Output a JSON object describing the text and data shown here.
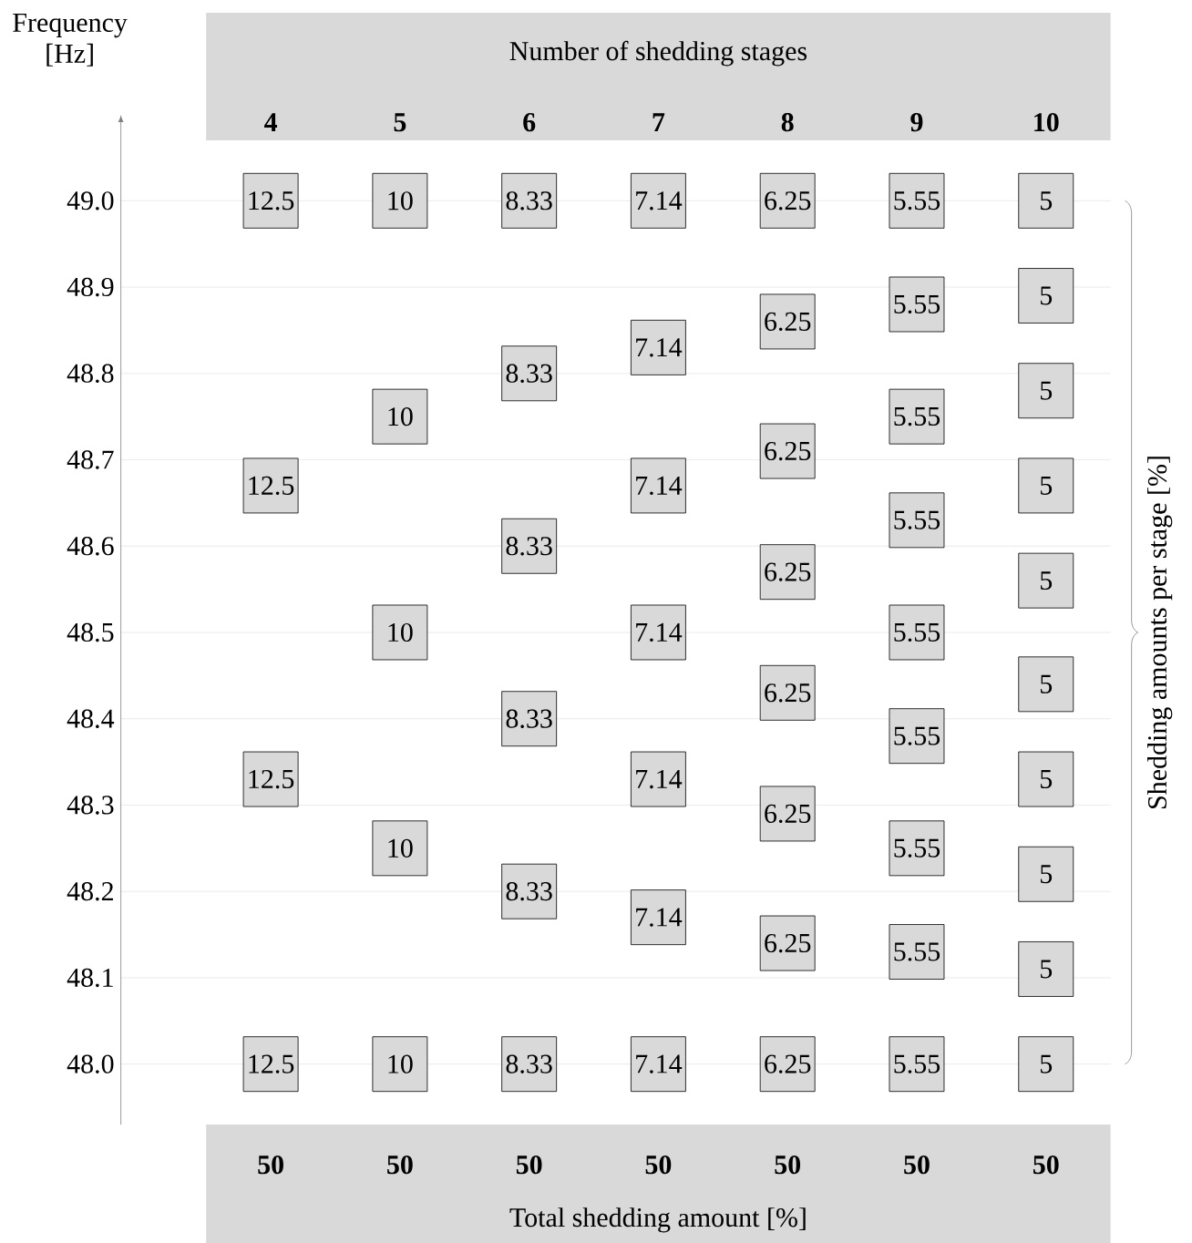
{
  "chart_data": {
    "type": "scatter",
    "xlabel": "Number of shedding stages",
    "ylabel": "Frequency [Hz]",
    "y2label": "Shedding amounts per stage [%]",
    "categories": [
      "4",
      "5",
      "6",
      "7",
      "8",
      "9",
      "10"
    ],
    "ylim": [
      47.93,
      49.07
    ],
    "yticks": [
      {
        "value": 48.0,
        "label": "48.0"
      },
      {
        "value": 48.1,
        "label": "48.1"
      },
      {
        "value": 48.2,
        "label": "48.2"
      },
      {
        "value": 48.3,
        "label": "48.3"
      },
      {
        "value": 48.4,
        "label": "48.4"
      },
      {
        "value": 48.5,
        "label": "48.5"
      },
      {
        "value": 48.6,
        "label": "48.6"
      },
      {
        "value": 48.7,
        "label": "48.7"
      },
      {
        "value": 48.8,
        "label": "48.8"
      },
      {
        "value": 48.9,
        "label": "48.9"
      },
      {
        "value": 49.0,
        "label": "49.0"
      }
    ],
    "grid": true,
    "marker": "square",
    "totals": [
      "50",
      "50",
      "50",
      "50",
      "50",
      "50",
      "50"
    ],
    "annotations": [
      "Total shedding amount [%]",
      {
        "text": "12.5",
        "x": "4",
        "y": 49.0
      },
      {
        "text": "12.5",
        "x": "4",
        "y": 48.67
      },
      {
        "text": "12.5",
        "x": "4",
        "y": 48.33
      },
      {
        "text": "12.5",
        "x": "4",
        "y": 48.0
      },
      {
        "text": "10",
        "x": "5",
        "y": 49.0
      },
      {
        "text": "10",
        "x": "5",
        "y": 48.75
      },
      {
        "text": "10",
        "x": "5",
        "y": 48.5
      },
      {
        "text": "10",
        "x": "5",
        "y": 48.25
      },
      {
        "text": "10",
        "x": "5",
        "y": 48.0
      },
      {
        "text": "8.33",
        "x": "6",
        "y": 49.0
      },
      {
        "text": "8.33",
        "x": "6",
        "y": 48.8
      },
      {
        "text": "8.33",
        "x": "6",
        "y": 48.6
      },
      {
        "text": "8.33",
        "x": "6",
        "y": 48.4
      },
      {
        "text": "8.33",
        "x": "6",
        "y": 48.2
      },
      {
        "text": "8.33",
        "x": "6",
        "y": 48.0
      },
      {
        "text": "7.14",
        "x": "7",
        "y": 49.0
      },
      {
        "text": "7.14",
        "x": "7",
        "y": 48.83
      },
      {
        "text": "7.14",
        "x": "7",
        "y": 48.67
      },
      {
        "text": "7.14",
        "x": "7",
        "y": 48.5
      },
      {
        "text": "7.14",
        "x": "7",
        "y": 48.33
      },
      {
        "text": "7.14",
        "x": "7",
        "y": 48.17
      },
      {
        "text": "7.14",
        "x": "7",
        "y": 48.0
      },
      {
        "text": "6.25",
        "x": "8",
        "y": 49.0
      },
      {
        "text": "6.25",
        "x": "8",
        "y": 48.86
      },
      {
        "text": "6.25",
        "x": "8",
        "y": 48.71
      },
      {
        "text": "6.25",
        "x": "8",
        "y": 48.57
      },
      {
        "text": "6.25",
        "x": "8",
        "y": 48.43
      },
      {
        "text": "6.25",
        "x": "8",
        "y": 48.29
      },
      {
        "text": "6.25",
        "x": "8",
        "y": 48.14
      },
      {
        "text": "6.25",
        "x": "8",
        "y": 48.0
      },
      {
        "text": "5.55",
        "x": "9",
        "y": 49.0
      },
      {
        "text": "5.55",
        "x": "9",
        "y": 48.88
      },
      {
        "text": "5.55",
        "x": "9",
        "y": 48.75
      },
      {
        "text": "5.55",
        "x": "9",
        "y": 48.63
      },
      {
        "text": "5.55",
        "x": "9",
        "y": 48.5
      },
      {
        "text": "5.55",
        "x": "9",
        "y": 48.38
      },
      {
        "text": "5.55",
        "x": "9",
        "y": 48.25
      },
      {
        "text": "5.55",
        "x": "9",
        "y": 48.13
      },
      {
        "text": "5.55",
        "x": "9",
        "y": 48.0
      },
      {
        "text": "5",
        "x": "10",
        "y": 49.0
      },
      {
        "text": "5",
        "x": "10",
        "y": 48.89
      },
      {
        "text": "5",
        "x": "10",
        "y": 48.78
      },
      {
        "text": "5",
        "x": "10",
        "y": 48.67
      },
      {
        "text": "5",
        "x": "10",
        "y": 48.56
      },
      {
        "text": "5",
        "x": "10",
        "y": 48.44
      },
      {
        "text": "5",
        "x": "10",
        "y": 48.33
      },
      {
        "text": "5",
        "x": "10",
        "y": 48.22
      },
      {
        "text": "5",
        "x": "10",
        "y": 48.11
      },
      {
        "text": "5",
        "x": "10",
        "y": 48.0
      }
    ],
    "series": [
      {
        "color": "#d9d9d9",
        "x": [
          "4",
          "4",
          "4",
          "4"
        ],
        "values": [
          49.0,
          48.67,
          48.33,
          48.0
        ]
      },
      {
        "color": "#d9d9d9",
        "x": [
          "5",
          "5",
          "5",
          "5",
          "5"
        ],
        "values": [
          49.0,
          48.75,
          48.5,
          48.25,
          48.0
        ]
      },
      {
        "color": "#d9d9d9",
        "x": [
          "6",
          "6",
          "6",
          "6",
          "6",
          "6"
        ],
        "values": [
          49.0,
          48.8,
          48.6,
          48.4,
          48.2,
          48.0
        ]
      },
      {
        "color": "#d9d9d9",
        "x": [
          "7",
          "7",
          "7",
          "7",
          "7",
          "7",
          "7"
        ],
        "values": [
          49.0,
          48.83,
          48.67,
          48.5,
          48.33,
          48.17,
          48.0
        ]
      },
      {
        "color": "#d9d9d9",
        "x": [
          "8",
          "8",
          "8",
          "8",
          "8",
          "8",
          "8",
          "8"
        ],
        "values": [
          49.0,
          48.86,
          48.71,
          48.57,
          48.43,
          48.29,
          48.14,
          48.0
        ]
      },
      {
        "color": "#d9d9d9",
        "x": [
          "9",
          "9",
          "9",
          "9",
          "9",
          "9",
          "9",
          "9",
          "9"
        ],
        "values": [
          49.0,
          48.88,
          48.75,
          48.63,
          48.5,
          48.38,
          48.25,
          48.13,
          48.0
        ]
      },
      {
        "color": "#d9d9d9",
        "x": [
          "10",
          "10",
          "10",
          "10",
          "10",
          "10",
          "10",
          "10",
          "10",
          "10"
        ],
        "values": [
          49.0,
          48.89,
          48.78,
          48.67,
          48.56,
          48.44,
          48.33,
          48.22,
          48.11,
          48.0
        ]
      }
    ]
  }
}
